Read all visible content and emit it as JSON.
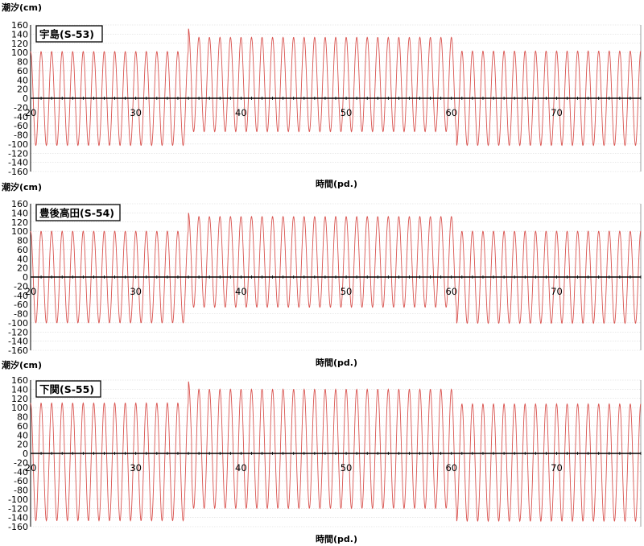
{
  "chart_data": [
    {
      "type": "line",
      "station_label": "宇島(S-53)",
      "ylabel": "潮汐(cm)",
      "xlabel": "時間(pd.)",
      "xlim": [
        20,
        78
      ],
      "ylim": [
        -160,
        160
      ],
      "x_ticks": [
        20,
        30,
        40,
        50,
        60,
        70
      ],
      "y_ticks": [
        160,
        140,
        120,
        100,
        80,
        60,
        40,
        20,
        0,
        -20,
        -40,
        -60,
        -80,
        -100,
        -120,
        -140,
        -160
      ],
      "grid": true,
      "line_color": "#d9534f",
      "series": [
        {
          "period": 1.0,
          "segments": [
            {
              "from": 20.0,
              "to": 35.0,
              "max": 102,
              "min": -103
            },
            {
              "from": 35.0,
              "to": 35.3,
              "max": 152,
              "min": -40
            },
            {
              "from": 35.3,
              "to": 60.5,
              "max": 133,
              "min": -73
            },
            {
              "from": 60.5,
              "to": 78.0,
              "max": 103,
              "min": -103
            }
          ]
        }
      ]
    },
    {
      "type": "line",
      "station_label": "豊後高田(S-54)",
      "ylabel": "潮汐(cm)",
      "xlabel": "時間(pd.)",
      "xlim": [
        20,
        78
      ],
      "ylim": [
        -160,
        160
      ],
      "x_ticks": [
        20,
        30,
        40,
        50,
        60,
        70
      ],
      "y_ticks": [
        160,
        140,
        120,
        100,
        80,
        60,
        40,
        20,
        0,
        -20,
        -40,
        -60,
        -80,
        -100,
        -120,
        -140,
        -160
      ],
      "grid": true,
      "line_color": "#d9534f",
      "series": [
        {
          "period": 1.0,
          "segments": [
            {
              "from": 20.0,
              "to": 35.0,
              "max": 100,
              "min": -100
            },
            {
              "from": 35.0,
              "to": 35.3,
              "max": 140,
              "min": -40
            },
            {
              "from": 35.3,
              "to": 60.5,
              "max": 132,
              "min": -66
            },
            {
              "from": 60.5,
              "to": 78.0,
              "max": 100,
              "min": -101
            }
          ]
        }
      ]
    },
    {
      "type": "line",
      "station_label": "下関(S-55)",
      "ylabel": "潮汐(cm)",
      "xlabel": "時間(pd.)",
      "xlim": [
        20,
        78
      ],
      "ylim": [
        -160,
        160
      ],
      "x_ticks": [
        20,
        30,
        40,
        50,
        60,
        70
      ],
      "y_ticks": [
        160,
        140,
        120,
        100,
        80,
        60,
        40,
        20,
        0,
        -20,
        -40,
        -60,
        -80,
        -100,
        -120,
        -140,
        -160
      ],
      "grid": true,
      "line_color": "#d9534f",
      "series": [
        {
          "period": 1.0,
          "segments": [
            {
              "from": 20.0,
              "to": 35.0,
              "max": 110,
              "min": -147
            },
            {
              "from": 35.0,
              "to": 35.3,
              "max": 157,
              "min": -40
            },
            {
              "from": 35.3,
              "to": 60.5,
              "max": 140,
              "min": -120
            },
            {
              "from": 60.5,
              "to": 78.0,
              "max": 108,
              "min": -148
            }
          ]
        }
      ]
    }
  ]
}
